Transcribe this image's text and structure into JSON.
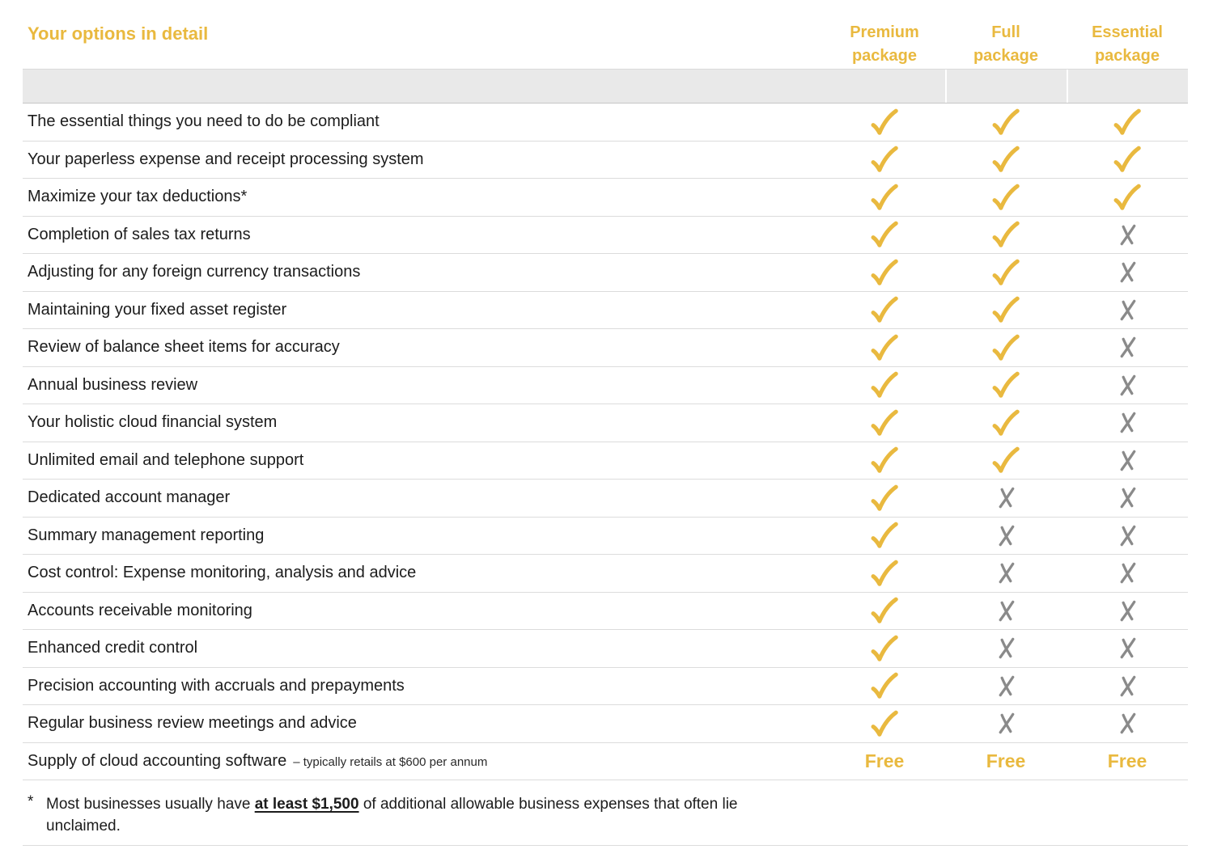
{
  "title": "Your options in detail",
  "columns": [
    {
      "line1": "Premium",
      "line2": "package"
    },
    {
      "line1": "Full",
      "line2": "package"
    },
    {
      "line1": "Essential",
      "line2": "package"
    }
  ],
  "rows": [
    {
      "feature": "The essential things you need to do be compliant",
      "values": [
        "check",
        "check",
        "check"
      ]
    },
    {
      "feature": "Your paperless expense and receipt processing system",
      "values": [
        "check",
        "check",
        "check"
      ]
    },
    {
      "feature": "Maximize your tax deductions*",
      "values": [
        "check",
        "check",
        "check"
      ]
    },
    {
      "feature": "Completion of sales tax returns",
      "values": [
        "check",
        "check",
        "cross"
      ]
    },
    {
      "feature": "Adjusting for any foreign currency transactions",
      "values": [
        "check",
        "check",
        "cross"
      ]
    },
    {
      "feature": "Maintaining your fixed asset register",
      "values": [
        "check",
        "check",
        "cross"
      ]
    },
    {
      "feature": "Review of balance sheet items for accuracy",
      "values": [
        "check",
        "check",
        "cross"
      ]
    },
    {
      "feature": "Annual business review",
      "values": [
        "check",
        "check",
        "cross"
      ]
    },
    {
      "feature": "Your holistic cloud financial system",
      "values": [
        "check",
        "check",
        "cross"
      ]
    },
    {
      "feature": "Unlimited email and telephone support",
      "values": [
        "check",
        "check",
        "cross"
      ]
    },
    {
      "feature": "Dedicated account manager",
      "values": [
        "check",
        "cross",
        "cross"
      ]
    },
    {
      "feature": "Summary management reporting",
      "values": [
        "check",
        "cross",
        "cross"
      ]
    },
    {
      "feature": "Cost control: Expense monitoring, analysis and advice",
      "values": [
        "check",
        "cross",
        "cross"
      ]
    },
    {
      "feature": "Accounts receivable monitoring",
      "values": [
        "check",
        "cross",
        "cross"
      ]
    },
    {
      "feature": "Enhanced credit control",
      "values": [
        "check",
        "cross",
        "cross"
      ]
    },
    {
      "feature": "Precision accounting with accruals and prepayments",
      "values": [
        "check",
        "cross",
        "cross"
      ]
    },
    {
      "feature": "Regular business review meetings and advice",
      "values": [
        "check",
        "cross",
        "cross"
      ]
    },
    {
      "feature": "Supply of cloud accounting software",
      "note": "– typically retails at $600 per annum",
      "values": [
        "Free",
        "Free",
        "Free"
      ]
    }
  ],
  "footnote": {
    "marker": "*",
    "text_before": "Most businesses usually have ",
    "highlight": "at least $1,500",
    "text_after": " of additional allowable business expenses that often lie unclaimed."
  },
  "colors": {
    "gold": "#e9b93f",
    "cross_gray": "#8a8a8a",
    "text": "#1c1c1c",
    "band_gray": "#e9e9e9",
    "separator": "#dcdcdc"
  }
}
